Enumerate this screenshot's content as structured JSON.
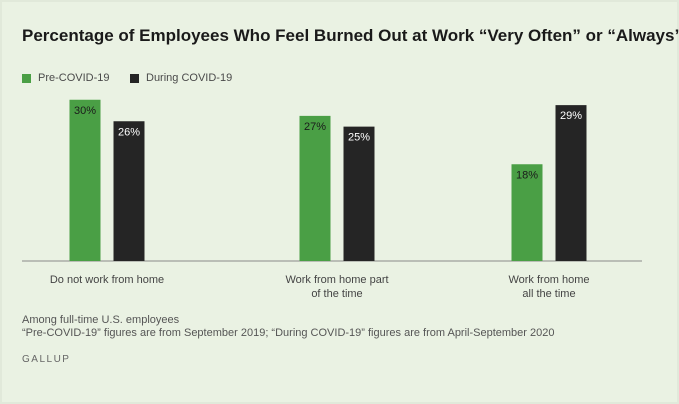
{
  "chart_data": {
    "type": "bar",
    "title": "Percentage of Employees Who Feel Burned Out at Work “Very Often” or “Always”",
    "categories": [
      [
        "Do not work from home"
      ],
      [
        "Work from home part",
        "of the time"
      ],
      [
        "Work from home",
        "all the time"
      ]
    ],
    "series": [
      {
        "name": "Pre-COVID-19",
        "values": [
          30,
          27,
          18
        ],
        "labels": [
          "30%",
          "27%",
          "18%"
        ],
        "color": "#4a9f45"
      },
      {
        "name": "During COVID-19",
        "values": [
          26,
          25,
          29
        ],
        "labels": [
          "26%",
          "25%",
          "29%"
        ],
        "color": "#252525"
      }
    ],
    "ylim": [
      0,
      32
    ],
    "grid": false,
    "legend_position": "top-left"
  },
  "notes": [
    "Among full-time U.S. employees",
    "“Pre-COVID-19” figures are from September 2019; “During COVID-19” figures are from April-September 2020"
  ],
  "source": "GALLUP"
}
